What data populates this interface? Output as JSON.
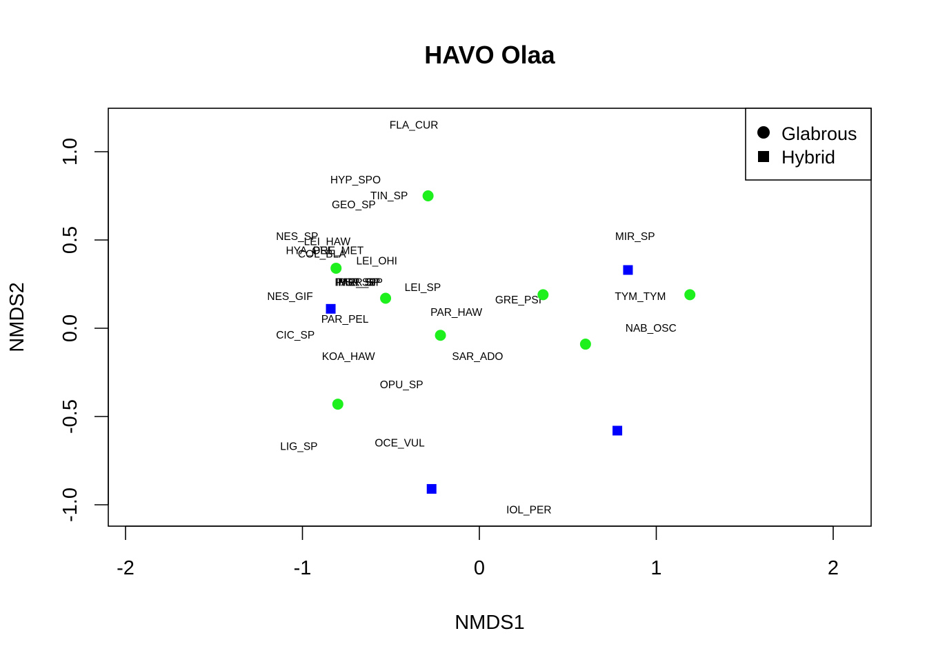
{
  "chart_data": {
    "type": "scatter",
    "title": "HAVO Olaa",
    "xlabel": "NMDS1",
    "ylabel": "NMDS2",
    "xlim": [
      -2.1,
      2.2
    ],
    "ylim": [
      -1.12,
      1.25
    ],
    "x_ticks": [
      -2,
      -1,
      0,
      1,
      2
    ],
    "x_tick_labels": [
      "-2",
      "-1",
      "0",
      "1",
      "2"
    ],
    "y_ticks": [
      -1.0,
      -0.5,
      0.0,
      0.5,
      1.0
    ],
    "y_tick_labels": [
      "-1.0",
      "-0.5",
      "0.0",
      "0.5",
      "1.0"
    ],
    "grid": false,
    "legend": {
      "position": "top-right",
      "entries": [
        {
          "label": "Glabrous",
          "marker": "circle",
          "color": "#000000"
        },
        {
          "label": "Hybrid",
          "marker": "square",
          "color": "#000000"
        }
      ]
    },
    "series": [
      {
        "name": "Glabrous",
        "marker": "circle",
        "color": "#1df01d",
        "points": [
          {
            "x": -0.29,
            "y": 0.75
          },
          {
            "x": -0.81,
            "y": 0.34
          },
          {
            "x": -0.53,
            "y": 0.17
          },
          {
            "x": -0.22,
            "y": -0.04
          },
          {
            "x": -0.8,
            "y": -0.43
          },
          {
            "x": 0.36,
            "y": 0.19
          },
          {
            "x": 0.6,
            "y": -0.09
          },
          {
            "x": 1.19,
            "y": 0.19
          }
        ]
      },
      {
        "name": "Hybrid",
        "marker": "square",
        "color": "#0000ff",
        "points": [
          {
            "x": -0.84,
            "y": 0.11
          },
          {
            "x": 0.84,
            "y": 0.33
          },
          {
            "x": 0.78,
            "y": -0.58
          },
          {
            "x": -0.27,
            "y": -0.91
          }
        ]
      }
    ],
    "species_labels": [
      {
        "text": "FLA_CUR",
        "x": -0.37,
        "y": 1.15
      },
      {
        "text": "HYP_SPO",
        "x": -0.7,
        "y": 0.84
      },
      {
        "text": "TIN_SP",
        "x": -0.51,
        "y": 0.75
      },
      {
        "text": "GEO_SP",
        "x": -0.71,
        "y": 0.7
      },
      {
        "text": "NES_SP",
        "x": -1.03,
        "y": 0.52
      },
      {
        "text": "LEI_HAW",
        "x": -0.86,
        "y": 0.49
      },
      {
        "text": "HYA_PEL",
        "x": -0.96,
        "y": 0.44
      },
      {
        "text": "ORE_MET",
        "x": -0.8,
        "y": 0.44
      },
      {
        "text": "COL_BLA",
        "x": -0.89,
        "y": 0.42
      },
      {
        "text": "LEI_OHI",
        "x": -0.58,
        "y": 0.38
      },
      {
        "text": "PAR_SP",
        "x": -0.7,
        "y": 0.26
      },
      {
        "text": "PHR_SP",
        "x": -0.69,
        "y": 0.26
      },
      {
        "text": "PSR_SP",
        "x": -0.68,
        "y": 0.26
      },
      {
        "text": "MER_SP",
        "x": -0.67,
        "y": 0.26
      },
      {
        "text": "LEI_SP",
        "x": -0.32,
        "y": 0.23
      },
      {
        "text": "NES_GIF",
        "x": -1.07,
        "y": 0.18
      },
      {
        "text": "GRE_PSI",
        "x": 0.22,
        "y": 0.16
      },
      {
        "text": "TYM_TYM",
        "x": 0.91,
        "y": 0.18
      },
      {
        "text": "PAR_HAW",
        "x": -0.13,
        "y": 0.09
      },
      {
        "text": "PAR_PEL",
        "x": -0.76,
        "y": 0.05
      },
      {
        "text": "NAB_OSC",
        "x": 0.97,
        "y": 0.0
      },
      {
        "text": "CIC_SP",
        "x": -1.04,
        "y": -0.04
      },
      {
        "text": "KOA_HAW",
        "x": -0.74,
        "y": -0.16
      },
      {
        "text": "SAR_ADO",
        "x": -0.01,
        "y": -0.16
      },
      {
        "text": "OPU_SP",
        "x": -0.44,
        "y": -0.32
      },
      {
        "text": "OCE_VUL",
        "x": -0.45,
        "y": -0.65
      },
      {
        "text": "LIG_SP",
        "x": -1.02,
        "y": -0.67
      },
      {
        "text": "MIR_SP",
        "x": 0.88,
        "y": 0.52
      },
      {
        "text": "IOL_PER",
        "x": 0.28,
        "y": -1.03
      }
    ]
  }
}
